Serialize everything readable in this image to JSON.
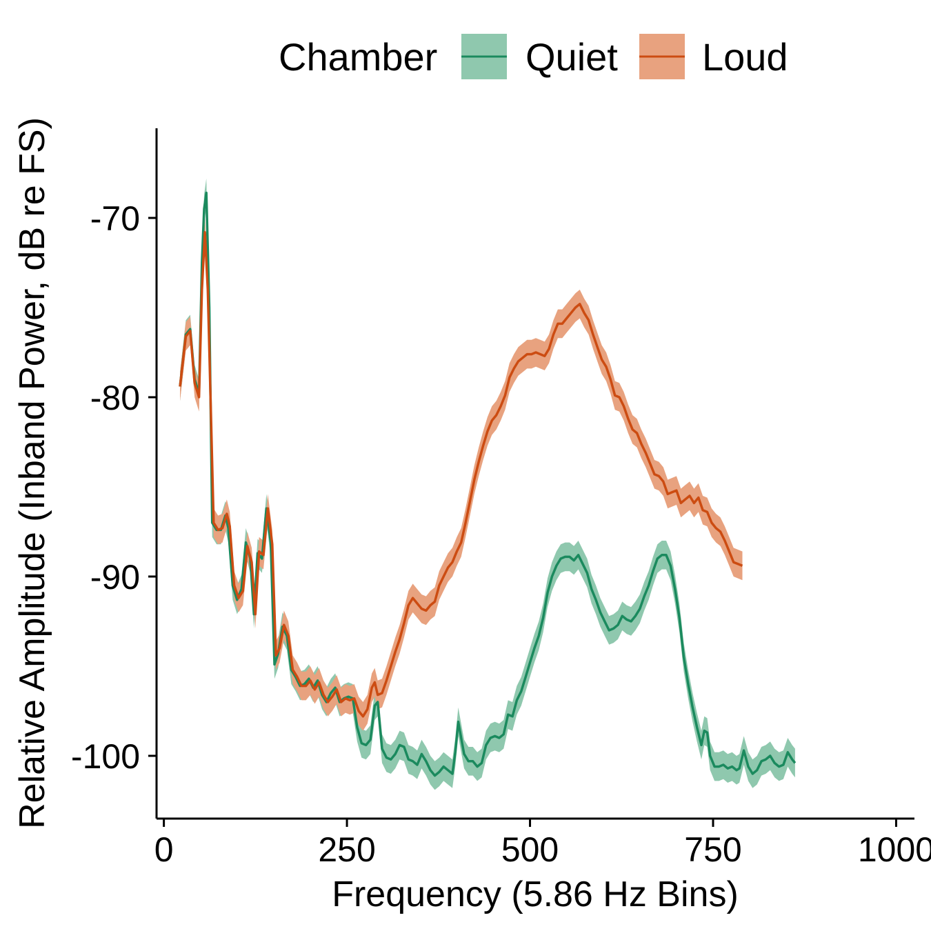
{
  "chart_data": {
    "type": "line",
    "title": "",
    "xlabel": "Frequency (5.86 Hz Bins)",
    "ylabel": "Relative Amplitude (Inband Power, dB re FS)",
    "xlim": [
      -10,
      1025
    ],
    "ylim": [
      -103.5,
      -65
    ],
    "x_ticks": [
      0,
      250,
      500,
      750,
      1000
    ],
    "y_ticks": [
      -70,
      -80,
      -90,
      -100
    ],
    "grid": false,
    "legend": {
      "title": "Chamber",
      "position": "top",
      "entries": [
        "Quiet",
        "Loud"
      ]
    },
    "colors": {
      "Quiet": "#1b8a5e",
      "Quiet_band": "#8fc8ae",
      "Loud": "#cc4c12",
      "Loud_band": "#e8a27f"
    },
    "series": [
      {
        "name": "Quiet",
        "ci_halfwidth": 0.8,
        "points": [
          [
            22,
            -79.4
          ],
          [
            30,
            -76.5
          ],
          [
            36,
            -76.2
          ],
          [
            42,
            -79.0
          ],
          [
            48,
            -79.8
          ],
          [
            52,
            -72.5
          ],
          [
            55,
            -69.5
          ],
          [
            58,
            -68.6
          ],
          [
            62,
            -75.0
          ],
          [
            66,
            -87.0
          ],
          [
            72,
            -87.4
          ],
          [
            78,
            -87.4
          ],
          [
            84,
            -86.6
          ],
          [
            88,
            -87.3
          ],
          [
            94,
            -90.5
          ],
          [
            100,
            -91.3
          ],
          [
            106,
            -90.7
          ],
          [
            112,
            -88.1
          ],
          [
            118,
            -89.0
          ],
          [
            123,
            -92.1
          ],
          [
            128,
            -88.7
          ],
          [
            134,
            -89.0
          ],
          [
            140,
            -86.2
          ],
          [
            146,
            -88.1
          ],
          [
            151,
            -94.9
          ],
          [
            156,
            -94.3
          ],
          [
            162,
            -92.8
          ],
          [
            168,
            -93.3
          ],
          [
            174,
            -95.2
          ],
          [
            180,
            -95.6
          ],
          [
            186,
            -96.1
          ],
          [
            192,
            -96.0
          ],
          [
            198,
            -95.7
          ],
          [
            204,
            -96.2
          ],
          [
            210,
            -95.8
          ],
          [
            216,
            -96.6
          ],
          [
            222,
            -97.0
          ],
          [
            228,
            -96.5
          ],
          [
            234,
            -96.2
          ],
          [
            240,
            -97.0
          ],
          [
            246,
            -96.8
          ],
          [
            252,
            -96.7
          ],
          [
            258,
            -96.8
          ],
          [
            264,
            -98.4
          ],
          [
            270,
            -99.3
          ],
          [
            276,
            -99.4
          ],
          [
            282,
            -99.1
          ],
          [
            288,
            -97.2
          ],
          [
            292,
            -97.0
          ],
          [
            298,
            -99.6
          ],
          [
            304,
            -100.1
          ],
          [
            310,
            -100.2
          ],
          [
            316,
            -99.9
          ],
          [
            322,
            -99.4
          ],
          [
            328,
            -99.5
          ],
          [
            334,
            -100.2
          ],
          [
            340,
            -100.3
          ],
          [
            346,
            -100.5
          ],
          [
            352,
            -99.9
          ],
          [
            358,
            -100.3
          ],
          [
            364,
            -100.8
          ],
          [
            370,
            -101.1
          ],
          [
            376,
            -100.9
          ],
          [
            382,
            -100.6
          ],
          [
            388,
            -100.8
          ],
          [
            394,
            -101.0
          ],
          [
            398,
            -99.8
          ],
          [
            402,
            -98.1
          ],
          [
            406,
            -99.0
          ],
          [
            410,
            -99.9
          ],
          [
            416,
            -100.3
          ],
          [
            422,
            -100.3
          ],
          [
            428,
            -100.6
          ],
          [
            434,
            -100.4
          ],
          [
            440,
            -99.4
          ],
          [
            446,
            -99.0
          ],
          [
            452,
            -98.9
          ],
          [
            458,
            -99.0
          ],
          [
            464,
            -98.8
          ],
          [
            470,
            -97.7
          ],
          [
            476,
            -97.8
          ],
          [
            482,
            -96.9
          ],
          [
            488,
            -96.4
          ],
          [
            494,
            -95.6
          ],
          [
            500,
            -94.8
          ],
          [
            506,
            -94.0
          ],
          [
            512,
            -93.3
          ],
          [
            518,
            -92.3
          ],
          [
            524,
            -90.9
          ],
          [
            530,
            -90.0
          ],
          [
            536,
            -89.4
          ],
          [
            542,
            -89.0
          ],
          [
            548,
            -88.9
          ],
          [
            554,
            -88.9
          ],
          [
            560,
            -89.1
          ],
          [
            566,
            -88.8
          ],
          [
            572,
            -89.3
          ],
          [
            578,
            -89.8
          ],
          [
            584,
            -90.7
          ],
          [
            590,
            -91.3
          ],
          [
            596,
            -92.0
          ],
          [
            602,
            -92.5
          ],
          [
            608,
            -93.0
          ],
          [
            614,
            -92.9
          ],
          [
            620,
            -92.7
          ],
          [
            626,
            -92.2
          ],
          [
            632,
            -92.4
          ],
          [
            638,
            -92.5
          ],
          [
            644,
            -92.2
          ],
          [
            650,
            -91.8
          ],
          [
            656,
            -91.1
          ],
          [
            662,
            -90.5
          ],
          [
            668,
            -89.7
          ],
          [
            674,
            -89.0
          ],
          [
            680,
            -88.8
          ],
          [
            686,
            -88.8
          ],
          [
            692,
            -89.4
          ],
          [
            698,
            -90.7
          ],
          [
            704,
            -92.3
          ],
          [
            710,
            -94.5
          ],
          [
            716,
            -96.0
          ],
          [
            722,
            -97.3
          ],
          [
            728,
            -98.4
          ],
          [
            734,
            -99.4
          ],
          [
            738,
            -98.6
          ],
          [
            742,
            -98.7
          ],
          [
            746,
            -100.0
          ],
          [
            752,
            -100.6
          ],
          [
            758,
            -100.6
          ],
          [
            764,
            -100.5
          ],
          [
            770,
            -100.7
          ],
          [
            776,
            -100.6
          ],
          [
            782,
            -100.8
          ],
          [
            786,
            -100.7
          ],
          [
            792,
            -99.7
          ],
          [
            798,
            -100.6
          ],
          [
            804,
            -101.0
          ],
          [
            810,
            -100.8
          ],
          [
            816,
            -100.3
          ],
          [
            822,
            -100.2
          ],
          [
            828,
            -100.0
          ],
          [
            834,
            -100.4
          ],
          [
            840,
            -100.6
          ],
          [
            846,
            -100.5
          ],
          [
            852,
            -99.8
          ],
          [
            858,
            -100.2
          ],
          [
            862,
            -100.4
          ]
        ]
      },
      {
        "name": "Loud",
        "ci_halfwidth": 0.8,
        "points": [
          [
            22,
            -79.4
          ],
          [
            30,
            -76.6
          ],
          [
            36,
            -76.3
          ],
          [
            42,
            -79.2
          ],
          [
            48,
            -80.0
          ],
          [
            52,
            -74.0
          ],
          [
            56,
            -70.8
          ],
          [
            60,
            -74.0
          ],
          [
            64,
            -80.5
          ],
          [
            68,
            -87.0
          ],
          [
            74,
            -87.4
          ],
          [
            80,
            -87.3
          ],
          [
            86,
            -86.5
          ],
          [
            90,
            -87.2
          ],
          [
            96,
            -90.5
          ],
          [
            102,
            -91.2
          ],
          [
            108,
            -90.8
          ],
          [
            114,
            -88.3
          ],
          [
            120,
            -89.2
          ],
          [
            125,
            -92.1
          ],
          [
            130,
            -88.6
          ],
          [
            136,
            -88.8
          ],
          [
            142,
            -86.2
          ],
          [
            148,
            -88.2
          ],
          [
            153,
            -94.4
          ],
          [
            158,
            -94.0
          ],
          [
            164,
            -92.7
          ],
          [
            170,
            -93.3
          ],
          [
            176,
            -95.2
          ],
          [
            182,
            -95.6
          ],
          [
            188,
            -96.1
          ],
          [
            194,
            -96.1
          ],
          [
            200,
            -95.8
          ],
          [
            206,
            -96.3
          ],
          [
            212,
            -95.9
          ],
          [
            218,
            -96.6
          ],
          [
            224,
            -97.0
          ],
          [
            230,
            -96.7
          ],
          [
            236,
            -96.3
          ],
          [
            242,
            -97.0
          ],
          [
            248,
            -96.8
          ],
          [
            254,
            -96.9
          ],
          [
            260,
            -96.8
          ],
          [
            266,
            -97.5
          ],
          [
            272,
            -97.8
          ],
          [
            278,
            -97.4
          ],
          [
            284,
            -96.2
          ],
          [
            288,
            -95.9
          ],
          [
            292,
            -96.6
          ],
          [
            298,
            -96.5
          ],
          [
            304,
            -95.8
          ],
          [
            310,
            -95.0
          ],
          [
            316,
            -94.2
          ],
          [
            322,
            -93.5
          ],
          [
            328,
            -92.6
          ],
          [
            334,
            -91.6
          ],
          [
            340,
            -91.2
          ],
          [
            346,
            -91.5
          ],
          [
            352,
            -91.8
          ],
          [
            358,
            -91.9
          ],
          [
            364,
            -91.6
          ],
          [
            370,
            -91.4
          ],
          [
            376,
            -90.5
          ],
          [
            382,
            -90.0
          ],
          [
            388,
            -89.5
          ],
          [
            394,
            -89.2
          ],
          [
            400,
            -88.6
          ],
          [
            406,
            -88.1
          ],
          [
            412,
            -87.0
          ],
          [
            418,
            -85.8
          ],
          [
            424,
            -84.6
          ],
          [
            430,
            -83.6
          ],
          [
            436,
            -82.7
          ],
          [
            442,
            -81.9
          ],
          [
            448,
            -81.3
          ],
          [
            454,
            -81.0
          ],
          [
            460,
            -80.5
          ],
          [
            466,
            -79.9
          ],
          [
            472,
            -78.9
          ],
          [
            478,
            -78.4
          ],
          [
            484,
            -78.0
          ],
          [
            490,
            -77.8
          ],
          [
            496,
            -77.6
          ],
          [
            502,
            -77.6
          ],
          [
            508,
            -77.5
          ],
          [
            514,
            -77.6
          ],
          [
            520,
            -77.7
          ],
          [
            526,
            -77.3
          ],
          [
            532,
            -76.5
          ],
          [
            538,
            -75.9
          ],
          [
            544,
            -75.9
          ],
          [
            550,
            -75.6
          ],
          [
            556,
            -75.3
          ],
          [
            562,
            -75.0
          ],
          [
            568,
            -74.8
          ],
          [
            574,
            -75.3
          ],
          [
            580,
            -75.7
          ],
          [
            586,
            -76.5
          ],
          [
            592,
            -77.2
          ],
          [
            598,
            -77.9
          ],
          [
            604,
            -78.3
          ],
          [
            610,
            -79.0
          ],
          [
            616,
            -79.9
          ],
          [
            622,
            -80.0
          ],
          [
            628,
            -80.5
          ],
          [
            634,
            -81.2
          ],
          [
            640,
            -81.8
          ],
          [
            646,
            -82.0
          ],
          [
            652,
            -82.6
          ],
          [
            658,
            -83.1
          ],
          [
            664,
            -83.7
          ],
          [
            670,
            -84.3
          ],
          [
            676,
            -84.4
          ],
          [
            682,
            -84.7
          ],
          [
            688,
            -85.4
          ],
          [
            694,
            -85.3
          ],
          [
            700,
            -85.2
          ],
          [
            706,
            -85.9
          ],
          [
            712,
            -85.7
          ],
          [
            718,
            -85.5
          ],
          [
            724,
            -85.9
          ],
          [
            730,
            -85.6
          ],
          [
            736,
            -86.3
          ],
          [
            742,
            -86.4
          ],
          [
            748,
            -87.0
          ],
          [
            754,
            -87.3
          ],
          [
            760,
            -87.5
          ],
          [
            766,
            -88.0
          ],
          [
            772,
            -88.6
          ],
          [
            778,
            -89.2
          ],
          [
            784,
            -89.3
          ],
          [
            790,
            -89.4
          ]
        ]
      }
    ]
  }
}
